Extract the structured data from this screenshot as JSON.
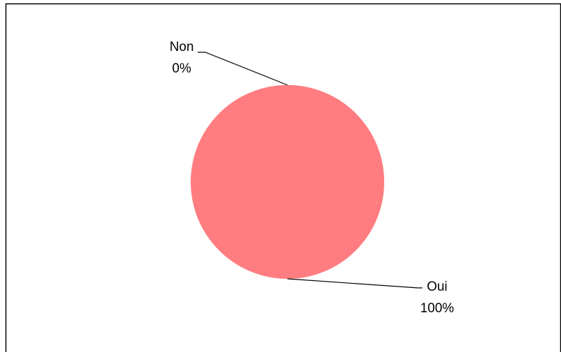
{
  "chart_data": {
    "type": "pie",
    "categories": [
      "Non",
      "Oui"
    ],
    "values": [
      0,
      100
    ],
    "value_labels": [
      "0%",
      "100%"
    ],
    "colors": [
      "#4472c4",
      "#ff7c80"
    ]
  }
}
